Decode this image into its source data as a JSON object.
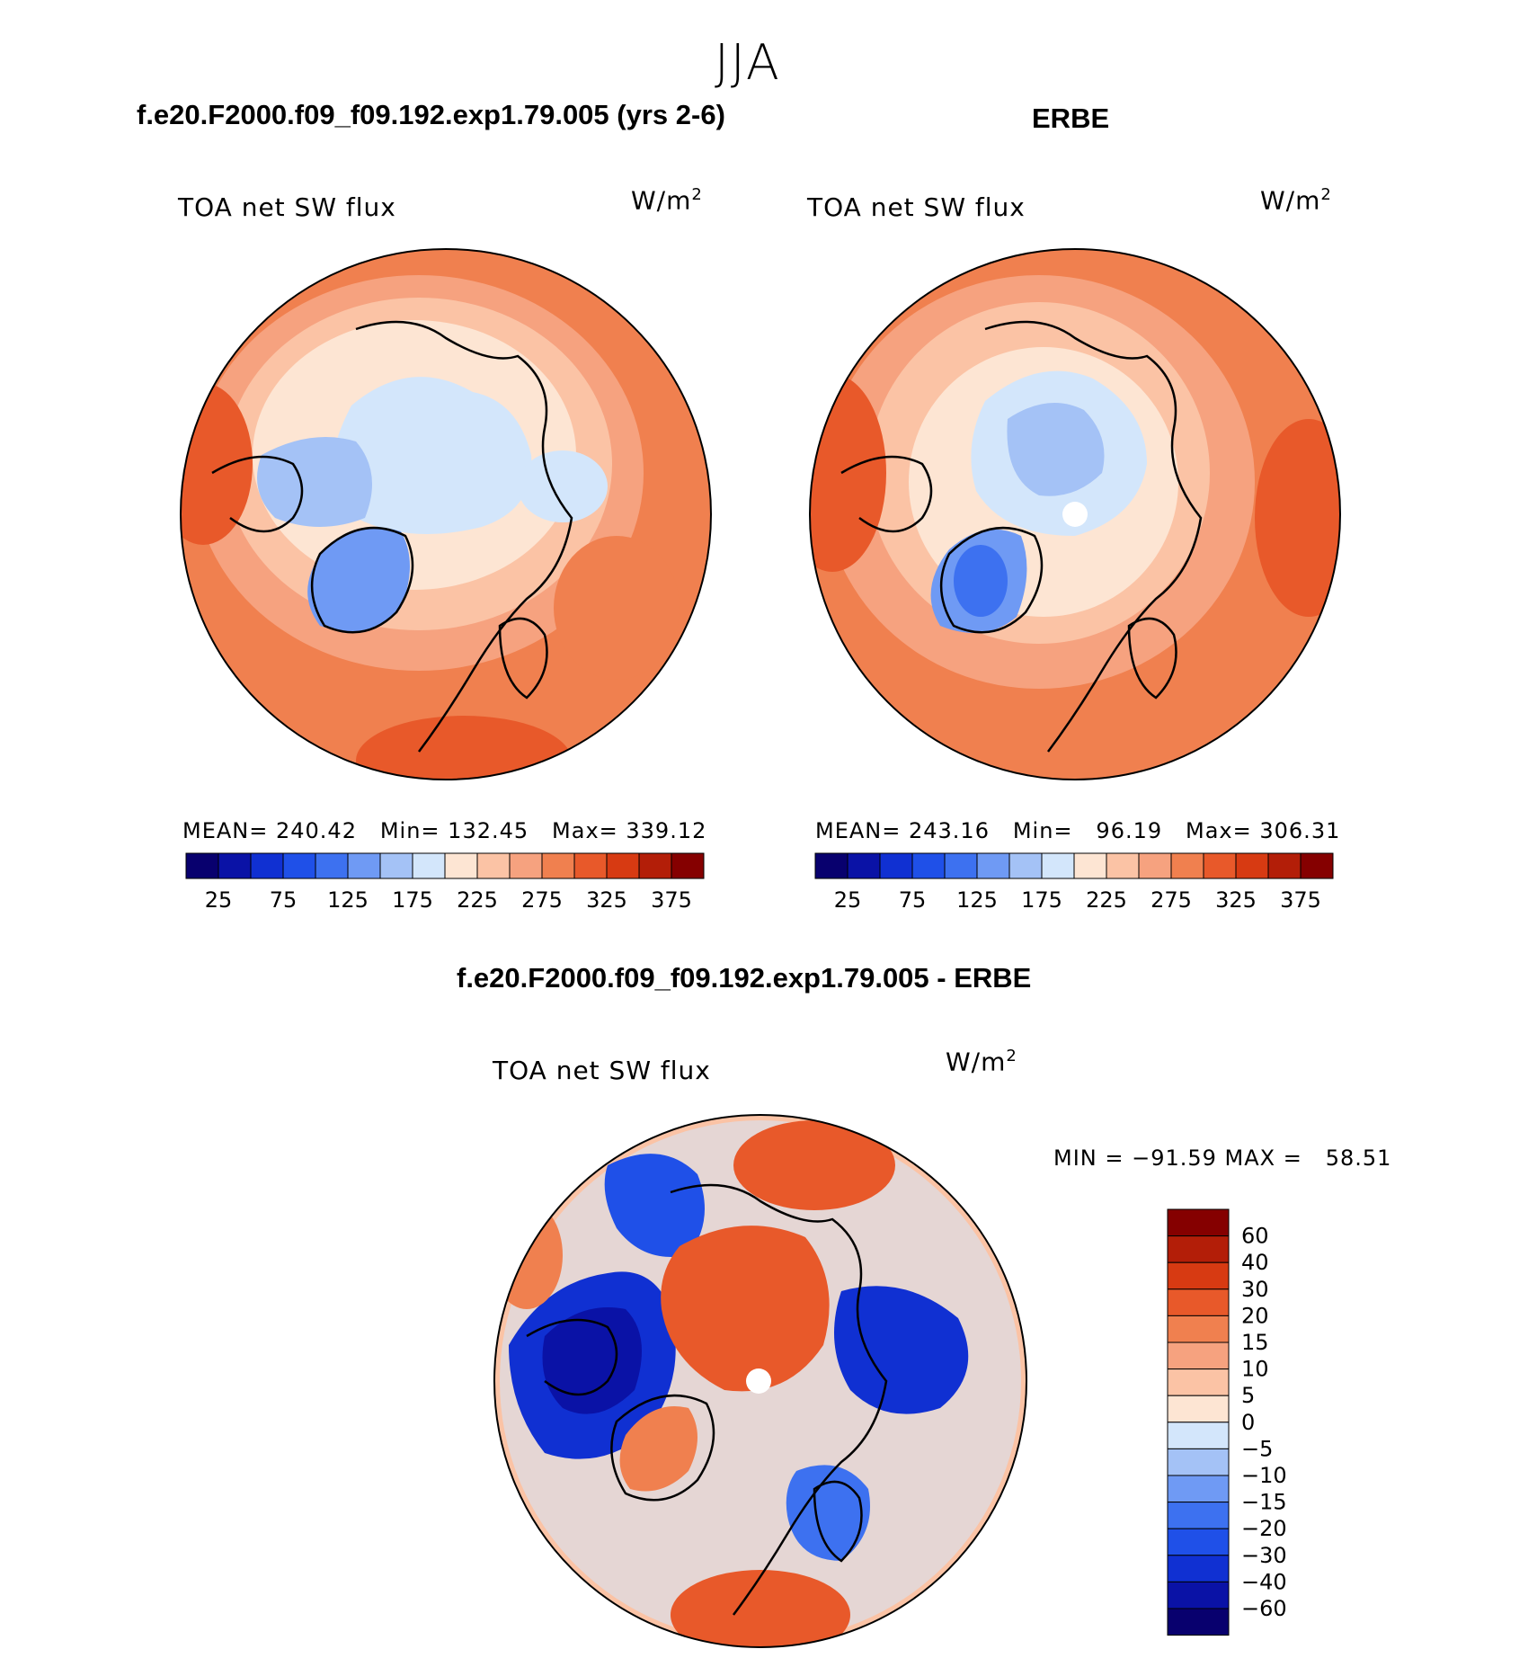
{
  "figure": {
    "title": "JJA"
  },
  "panels": {
    "model": {
      "title": "f.e20.F2000.f09_f09.192.exp1.79.005 (yrs 2-6)",
      "variable": "TOA net SW flux",
      "units": "W/m",
      "units_exp": "2",
      "stats": {
        "mean": "240.42",
        "min": "132.45",
        "max": "339.12"
      },
      "stats_text": "MEAN= 240.42   Min= 132.45   Max= 339.12"
    },
    "obs": {
      "title": "ERBE",
      "variable": "TOA net SW flux",
      "units": "W/m",
      "units_exp": "2",
      "stats": {
        "mean": "243.16",
        "min": "96.19",
        "max": "306.31"
      },
      "stats_text": "MEAN= 243.16   Min=   96.19   Max= 306.31"
    },
    "diff": {
      "title": "f.e20.F2000.f09_f09.192.exp1.79.005 - ERBE",
      "variable": "TOA net SW flux",
      "units": "W/m",
      "units_exp": "2",
      "stats_text": "MIN = −91.59 MAX =   58.51"
    }
  },
  "colorbars": {
    "absolute": {
      "tick_labels": [
        "25",
        "75",
        "125",
        "175",
        "225",
        "275",
        "325",
        "375"
      ],
      "colors": [
        "#08006e",
        "#0a12a6",
        "#1030d2",
        "#1f50e8",
        "#3d71f0",
        "#6f9af4",
        "#a4c2f6",
        "#d3e6fb",
        "#fde5d3",
        "#fbc3a5",
        "#f6a27f",
        "#f0804f",
        "#e8592a",
        "#d73a12",
        "#b31e08",
        "#850000"
      ]
    },
    "difference": {
      "tick_labels": [
        "60",
        "40",
        "30",
        "20",
        "15",
        "10",
        "5",
        "0",
        "−5",
        "−10",
        "−15",
        "−20",
        "−30",
        "−40",
        "−60"
      ],
      "colors": [
        "#850000",
        "#b31e08",
        "#d73a12",
        "#e8592a",
        "#f0804f",
        "#f6a27f",
        "#fbc3a5",
        "#fde5d3",
        "#d3e6fb",
        "#a4c2f6",
        "#6f9af4",
        "#3d71f0",
        "#1f50e8",
        "#1030d2",
        "#0a12a6",
        "#08006e"
      ]
    }
  },
  "chart_data": [
    {
      "type": "heatmap",
      "projection": "north polar stereographic",
      "title": "f.e20.F2000.f09_f09.192.exp1.79.005 (yrs 2-6)",
      "variable": "TOA net SW flux",
      "units": "W/m2",
      "mean": 240.42,
      "min": 132.45,
      "max": 339.12,
      "contour_levels": [
        25,
        50,
        75,
        100,
        125,
        150,
        175,
        200,
        225,
        250,
        275,
        300,
        325,
        350,
        375
      ],
      "colorbar_ticks": [
        25,
        75,
        125,
        175,
        225,
        275,
        325,
        375
      ]
    },
    {
      "type": "heatmap",
      "projection": "north polar stereographic",
      "title": "ERBE",
      "variable": "TOA net SW flux",
      "units": "W/m2",
      "mean": 243.16,
      "min": 96.19,
      "max": 306.31,
      "contour_levels": [
        25,
        50,
        75,
        100,
        125,
        150,
        175,
        200,
        225,
        250,
        275,
        300,
        325,
        350,
        375
      ],
      "colorbar_ticks": [
        25,
        75,
        125,
        175,
        225,
        275,
        325,
        375
      ]
    },
    {
      "type": "heatmap",
      "projection": "north polar stereographic",
      "title": "f.e20.F2000.f09_f09.192.exp1.79.005 - ERBE",
      "variable": "TOA net SW flux",
      "units": "W/m2",
      "min": -91.59,
      "max": 58.51,
      "contour_levels": [
        -60,
        -40,
        -30,
        -20,
        -15,
        -10,
        -5,
        0,
        5,
        10,
        15,
        20,
        30,
        40,
        60
      ],
      "colorbar_ticks": [
        60,
        40,
        30,
        20,
        15,
        10,
        5,
        0,
        -5,
        -10,
        -15,
        -20,
        -30,
        -40,
        -60
      ]
    }
  ]
}
